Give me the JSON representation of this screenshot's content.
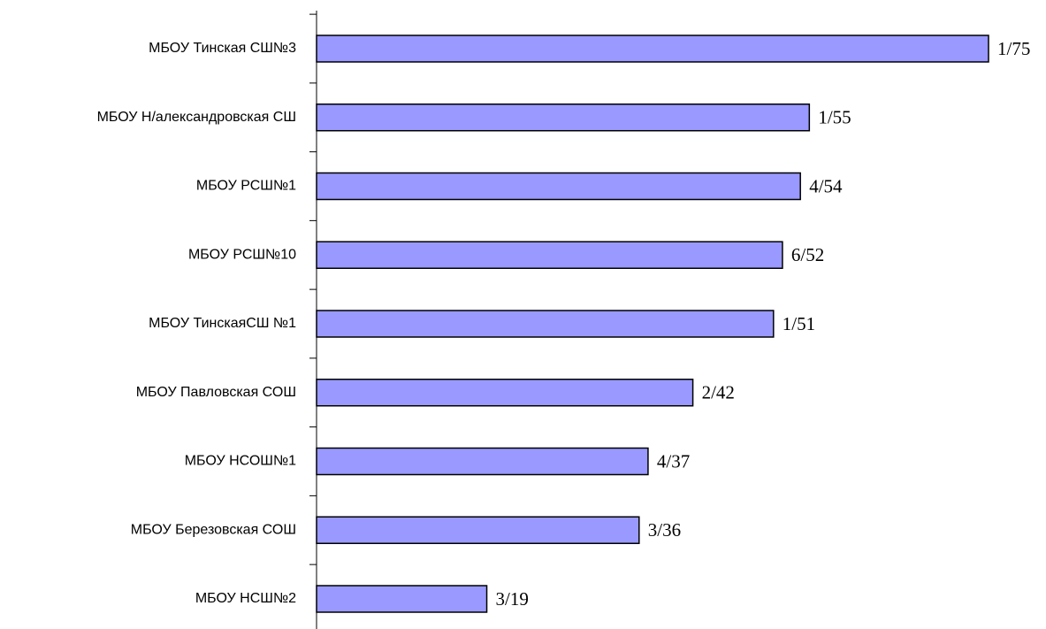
{
  "chart_data": {
    "type": "barh",
    "categories": [
      "МБОУ Тинская СШ№3",
      "МБОУ Н/александровская СШ",
      "МБОУ РСШ№1",
      "МБОУ РСШ№10",
      "МБОУ ТинскаяСШ №1",
      "МБОУ Павловская СОШ",
      "МБОУ НСОШ№1",
      "МБОУ Березовская СОШ",
      "МБОУ НСШ№2"
    ],
    "values": [
      75,
      55,
      54,
      52,
      51,
      42,
      37,
      36,
      19
    ],
    "value_labels": [
      "1/75",
      "1/55",
      "4/54",
      "6/52",
      "1/51",
      "2/42",
      "4/37",
      "3/36",
      "3/19"
    ],
    "color": "#9999ff"
  }
}
